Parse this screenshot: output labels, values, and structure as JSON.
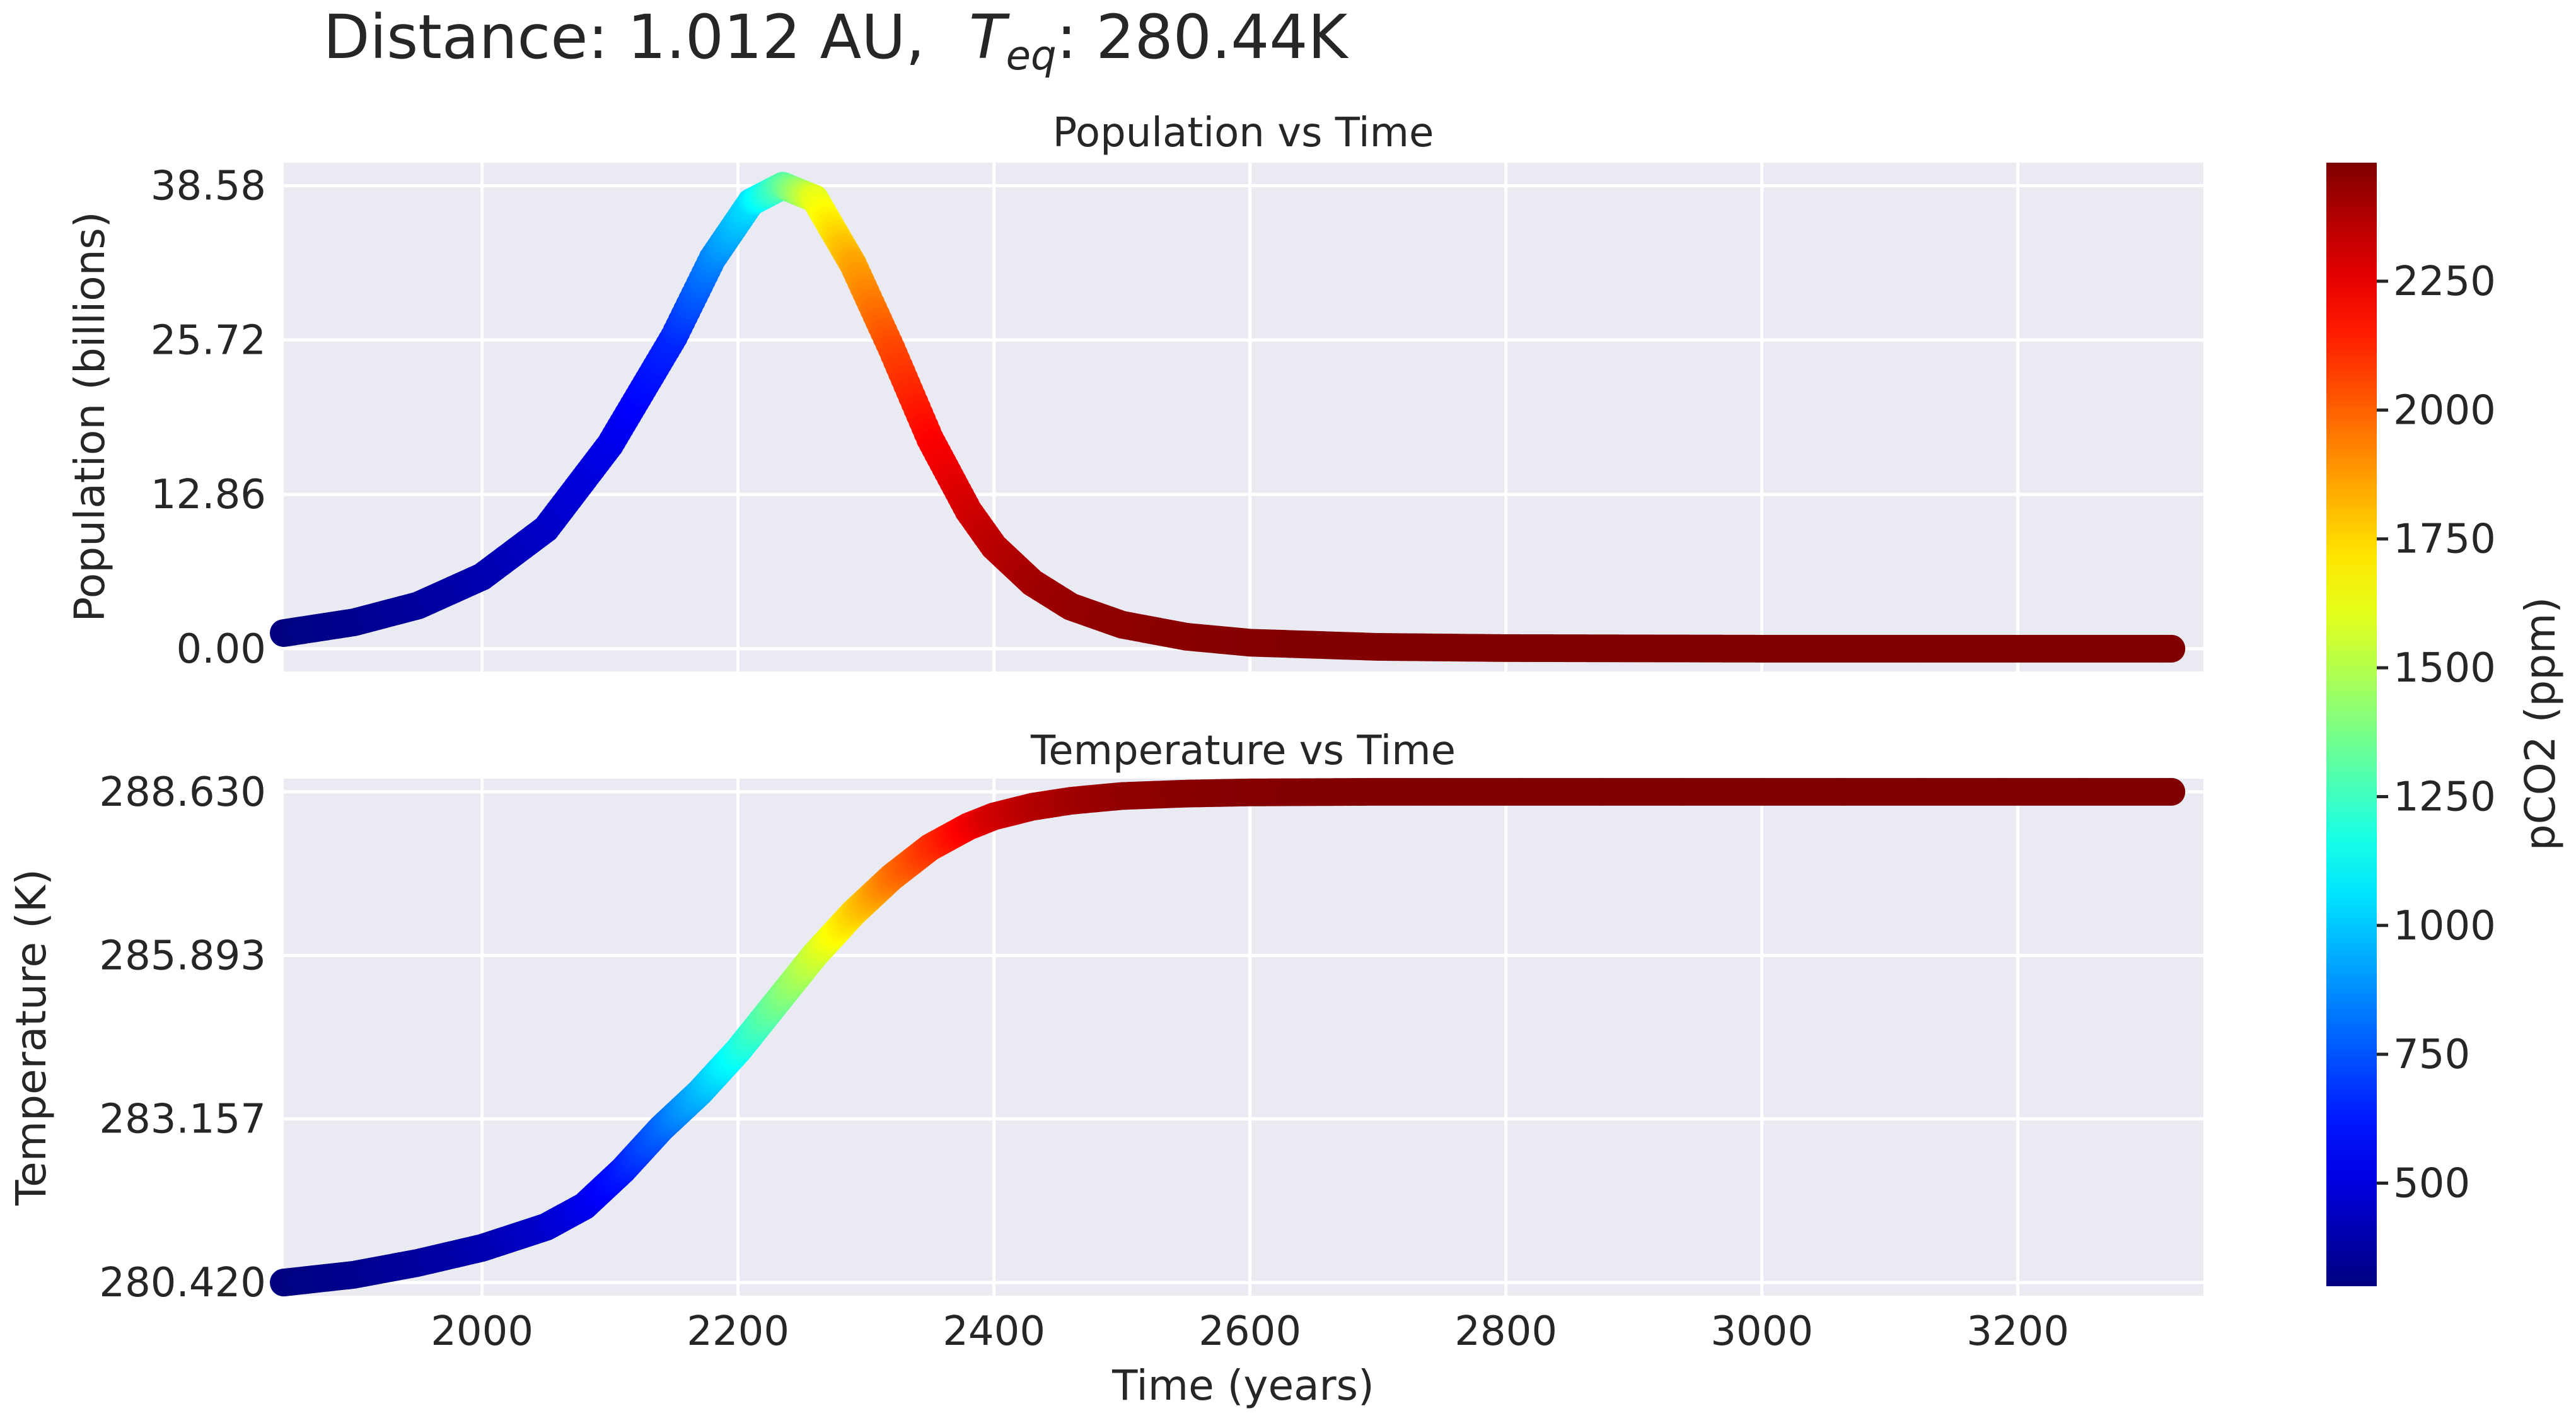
{
  "figure": {
    "title_prefix": "Distance: 1.012 AU,",
    "title_var": "T",
    "title_sub": "eq",
    "title_suffix": ": 280.44K",
    "xlabel": "Time (years)"
  },
  "colorbar": {
    "label": "pCO2 (ppm)",
    "min": 300,
    "max": 2480,
    "ticks": [
      500,
      750,
      1000,
      1250,
      1500,
      1750,
      2000,
      2250
    ],
    "tick_labels": [
      "500",
      "750",
      "1000",
      "1250",
      "1500",
      "1750",
      "2000",
      "2250"
    ]
  },
  "colors": {
    "panel_bg": "#eaeaf2",
    "grid": "#ffffff",
    "text": "#262626"
  },
  "chart_data": [
    {
      "type": "scatter",
      "title": "Population vs Time",
      "xlabel": "",
      "ylabel": "Population (billions)",
      "xlim": [
        1845,
        3345
      ],
      "ylim": [
        -1.9,
        40.5
      ],
      "xticks": [
        2000,
        2200,
        2400,
        2600,
        2800,
        3000,
        3200
      ],
      "xtick_labels": [
        "2000",
        "2200",
        "2400",
        "2600",
        "2800",
        "3000",
        "3200"
      ],
      "yticks": [
        0.0,
        12.86,
        25.72,
        38.58
      ],
      "ytick_labels": [
        "0.00",
        "12.86",
        "25.72",
        "38.58"
      ],
      "color_by": "pCO2 (ppm)",
      "x": [
        1845,
        1900,
        1950,
        2000,
        2050,
        2100,
        2150,
        2180,
        2210,
        2235,
        2260,
        2290,
        2320,
        2350,
        2380,
        2400,
        2430,
        2460,
        2500,
        2550,
        2600,
        2700,
        2800,
        3000,
        3200,
        3320
      ],
      "y": [
        1.3,
        2.2,
        3.6,
        6.0,
        10.0,
        17.0,
        26.0,
        32.5,
        37.2,
        38.58,
        37.5,
        32.0,
        25.0,
        17.5,
        11.5,
        8.5,
        5.5,
        3.5,
        2.0,
        1.0,
        0.5,
        0.15,
        0.05,
        0.0,
        0.0,
        0.0
      ],
      "pco2": [
        300,
        330,
        360,
        400,
        450,
        520,
        650,
        850,
        1050,
        1300,
        1600,
        1850,
        2050,
        2200,
        2300,
        2350,
        2400,
        2430,
        2450,
        2460,
        2470,
        2475,
        2478,
        2480,
        2480,
        2480
      ]
    },
    {
      "type": "scatter",
      "title": "Temperature vs Time",
      "xlabel": "Time (years)",
      "ylabel": "Temperature (K)",
      "xlim": [
        1845,
        3345
      ],
      "ylim": [
        280.2,
        288.85
      ],
      "xticks": [
        2000,
        2200,
        2400,
        2600,
        2800,
        3000,
        3200
      ],
      "xtick_labels": [
        "2000",
        "2200",
        "2400",
        "2600",
        "2800",
        "3000",
        "3200"
      ],
      "yticks": [
        280.42,
        283.157,
        285.893,
        288.63
      ],
      "ytick_labels": [
        "280.420",
        "283.157",
        "285.893",
        "288.630"
      ],
      "color_by": "pCO2 (ppm)",
      "x": [
        1845,
        1900,
        1950,
        2000,
        2050,
        2080,
        2110,
        2140,
        2170,
        2200,
        2230,
        2260,
        2290,
        2320,
        2350,
        2380,
        2400,
        2430,
        2460,
        2500,
        2550,
        2600,
        2700,
        2800,
        3000,
        3200,
        3320
      ],
      "y": [
        280.42,
        280.55,
        280.75,
        281.0,
        281.35,
        281.7,
        282.3,
        283.0,
        283.6,
        284.3,
        285.1,
        285.9,
        286.6,
        287.2,
        287.7,
        288.05,
        288.22,
        288.38,
        288.48,
        288.56,
        288.6,
        288.62,
        288.63,
        288.63,
        288.63,
        288.63,
        288.63
      ],
      "pco2": [
        300,
        330,
        360,
        400,
        460,
        520,
        620,
        780,
        950,
        1150,
        1350,
        1550,
        1750,
        1950,
        2100,
        2220,
        2300,
        2360,
        2400,
        2440,
        2460,
        2470,
        2475,
        2478,
        2480,
        2480,
        2480
      ]
    }
  ]
}
